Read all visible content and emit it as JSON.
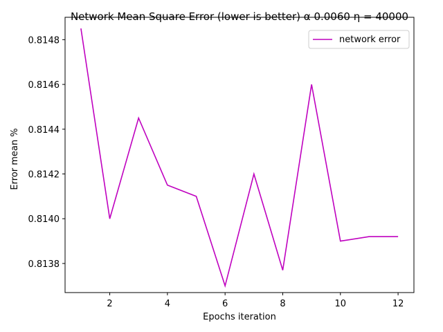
{
  "chart_data": {
    "type": "line",
    "title": "Network Mean Square Error (lower is better) α 0.0060  η = 40000",
    "xlabel": "Epochs iteration",
    "ylabel": "Error mean %",
    "xlim": [
      0.45,
      12.55
    ],
    "ylim": [
      0.81367,
      0.8149
    ],
    "xticks": [
      2,
      4,
      6,
      8,
      10,
      12
    ],
    "yticks": [
      0.8138,
      0.814,
      0.8142,
      0.8144,
      0.8146,
      0.8148
    ],
    "ytick_labels": [
      "0.8138",
      "0.8140",
      "0.8142",
      "0.8144",
      "0.8146",
      "0.8148"
    ],
    "grid": false,
    "legend_position": "top-right",
    "series": [
      {
        "name": "network error",
        "color": "#bf00bf",
        "x": [
          1,
          2,
          3,
          4,
          5,
          6,
          7,
          8,
          9,
          10,
          11,
          12
        ],
        "y": [
          0.81485,
          0.814,
          0.81445,
          0.81415,
          0.8141,
          0.8137,
          0.8142,
          0.81377,
          0.8146,
          0.8139,
          0.81392,
          0.81392
        ]
      }
    ]
  }
}
